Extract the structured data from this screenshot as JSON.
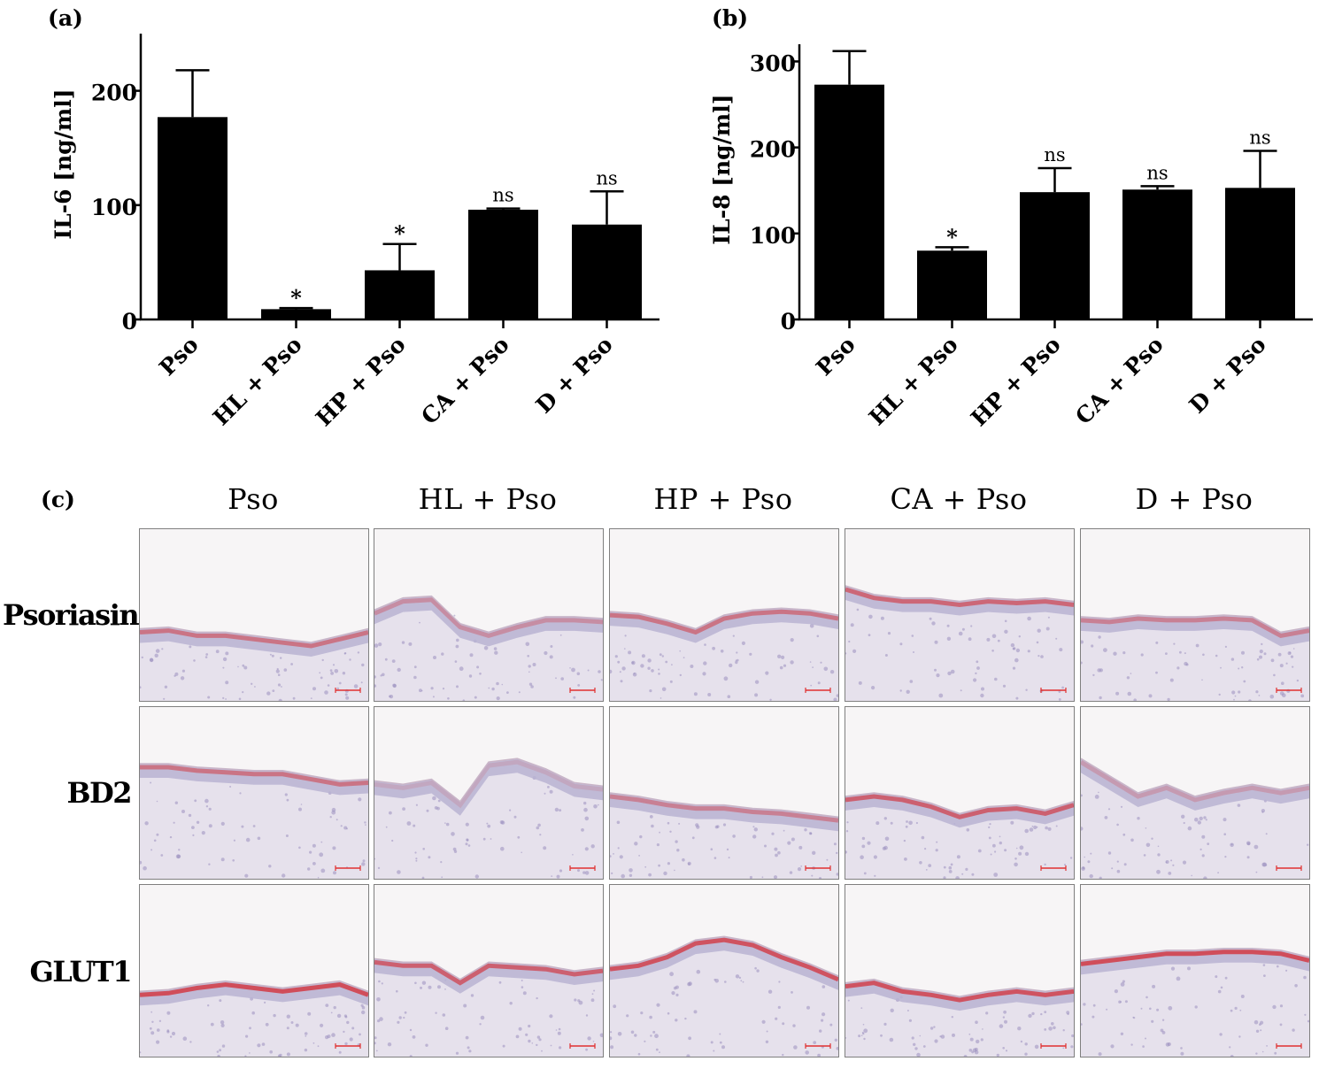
{
  "chart_data": [
    {
      "panel": "(a)",
      "type": "bar",
      "categories": [
        "Pso",
        "HL + Pso",
        "HP + Pso",
        "CA + Pso",
        "D + Pso"
      ],
      "values": [
        177,
        9,
        43,
        96,
        83
      ],
      "error_upper": [
        218,
        10,
        66,
        97,
        112
      ],
      "annotations": [
        "",
        "*",
        "*",
        "ns",
        "ns"
      ],
      "ylabel": "IL-6 [ng/ml]",
      "ylim": [
        0,
        250
      ],
      "yticks": [
        0,
        100,
        200
      ],
      "color": "#000000"
    },
    {
      "panel": "(b)",
      "type": "bar",
      "categories": [
        "Pso",
        "HL + Pso",
        "HP + Pso",
        "CA + Pso",
        "D + Pso"
      ],
      "values": [
        273,
        80,
        148,
        151,
        153
      ],
      "error_upper": [
        312,
        84,
        176,
        155,
        196
      ],
      "annotations": [
        "",
        "*",
        "ns",
        "ns",
        "ns"
      ],
      "ylabel": "IL-8 [ng/ml]",
      "ylim": [
        0,
        320
      ],
      "yticks": [
        0,
        100,
        200,
        300
      ],
      "color": "#000000"
    }
  ],
  "panel_c": {
    "label": "(c)",
    "columns": [
      "Pso",
      "HL + Pso",
      "HP + Pso",
      "CA + Pso",
      "D + Pso"
    ],
    "rows": [
      "Psoriasin",
      "BD2",
      "GLUT1"
    ],
    "stain_color": "#d23a44",
    "tissue_color": "#b9b3d2",
    "scale_bar_color": "#e03030"
  }
}
